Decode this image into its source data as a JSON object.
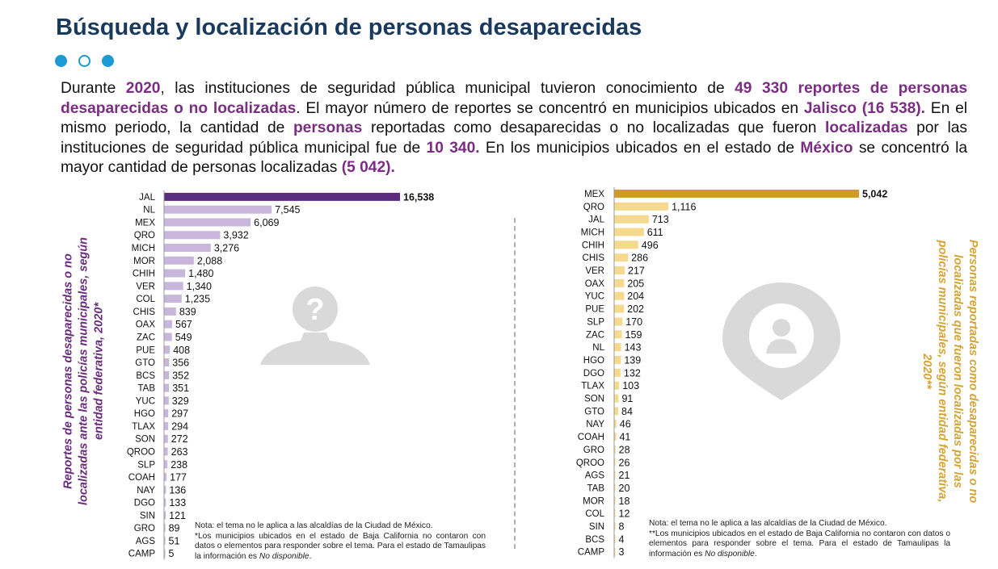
{
  "title": "Búsqueda y localización de personas desaparecidas",
  "intro": [
    {
      "t": "Durante ",
      "hl": false
    },
    {
      "t": "2020",
      "hl": true
    },
    {
      "t": ", las instituciones de seguridad pública municipal tuvieron conocimiento de ",
      "hl": false
    },
    {
      "t": "49 330 reportes de personas desaparecidas o no localizadas",
      "hl": true
    },
    {
      "t": ". El mayor número de reportes se concentró en municipios ubicados en ",
      "hl": false
    },
    {
      "t": "Jalisco (16 538).",
      "hl": true
    },
    {
      "t": " En el mismo periodo, la cantidad de ",
      "hl": false
    },
    {
      "t": "personas",
      "hl": true
    },
    {
      "t": " reportadas como desaparecidas o no localizadas que fueron ",
      "hl": false
    },
    {
      "t": "localizadas",
      "hl": true
    },
    {
      "t": " por las instituciones de seguridad pública municipal fue de ",
      "hl": false
    },
    {
      "t": "10 340.",
      "hl": true
    },
    {
      "t": " En los municipios ubicados en el estado de ",
      "hl": false
    },
    {
      "t": "México",
      "hl": true
    },
    {
      "t": " se concentró la mayor cantidad de personas localizadas ",
      "hl": false
    },
    {
      "t": "(5 042).",
      "hl": true
    }
  ],
  "colors": {
    "title": "#1a3a5c",
    "dots": "#1c9ad6",
    "highlight": "#7a2d82",
    "left_top_bar": "#5c2d7f",
    "left_bars": "#c8b6dc",
    "right_top_bar": "#d09a2a",
    "right_bars": "#f5d98c",
    "left_label": "#6a2c7e",
    "right_label": "#d4a437",
    "silhouette": "#d9d9d9"
  },
  "icons": [
    "person-question-icon",
    "location-pin-person-icon"
  ],
  "chart_data": [
    {
      "type": "bar",
      "orientation": "horizontal",
      "ylabel": "Reportes de personas desaparecidas o no localizadas ante las policías municipales, según entidad federativa, 2020*",
      "categories": [
        "JAL",
        "NL",
        "MEX",
        "QRO",
        "MICH",
        "MOR",
        "CHIH",
        "VER",
        "COL",
        "CHIS",
        "OAX",
        "ZAC",
        "PUE",
        "GTO",
        "BCS",
        "TAB",
        "YUC",
        "HGO",
        "TLAX",
        "SON",
        "QROO",
        "SLP",
        "COAH",
        "NAY",
        "DGO",
        "SIN",
        "GRO",
        "AGS",
        "CAMP"
      ],
      "values": [
        16538,
        7545,
        6069,
        3932,
        3276,
        2088,
        1480,
        1340,
        1235,
        839,
        567,
        549,
        408,
        356,
        352,
        351,
        329,
        297,
        294,
        272,
        263,
        238,
        177,
        136,
        133,
        121,
        89,
        51,
        5
      ],
      "labels": [
        "16,538",
        "7,545",
        "6,069",
        "3,932",
        "3,276",
        "2,088",
        "1,480",
        "1,340",
        "1,235",
        "839",
        "567",
        "549",
        "408",
        "356",
        "352",
        "351",
        "329",
        "297",
        "294",
        "272",
        "263",
        "238",
        "177",
        "136",
        "133",
        "121",
        "89",
        "51",
        "5"
      ],
      "note_lines": [
        "Nota: el tema no le aplica a las alcaldías de la Ciudad de México.",
        "*Los municipios ubicados en el estado de Baja California no contaron con datos o elementos para responder sobre el tema. Para el estado de Tamaulipas la información es "
      ],
      "note_italic": "No disponible",
      "note_end": "."
    },
    {
      "type": "bar",
      "orientation": "horizontal",
      "ylabel": "Personas reportadas como desaparecidas o no localizadas que fueron localizadas por las policías municipales, según entidad federativa, 2020**",
      "categories": [
        "MEX",
        "QRO",
        "JAL",
        "MICH",
        "CHIH",
        "CHIS",
        "VER",
        "OAX",
        "YUC",
        "PUE",
        "SLP",
        "ZAC",
        "NL",
        "HGO",
        "DGO",
        "TLAX",
        "SON",
        "GTO",
        "NAY",
        "COAH",
        "GRO",
        "QROO",
        "AGS",
        "TAB",
        "MOR",
        "COL",
        "SIN",
        "BCS",
        "CAMP"
      ],
      "values": [
        5042,
        1116,
        713,
        611,
        496,
        286,
        217,
        205,
        204,
        202,
        170,
        159,
        143,
        139,
        132,
        103,
        91,
        84,
        46,
        41,
        28,
        26,
        21,
        20,
        18,
        12,
        8,
        4,
        3
      ],
      "labels": [
        "5,042",
        "1,116",
        "713",
        "611",
        "496",
        "286",
        "217",
        "205",
        "204",
        "202",
        "170",
        "159",
        "143",
        "139",
        "132",
        "103",
        "91",
        "84",
        "46",
        "41",
        "28",
        "26",
        "21",
        "20",
        "18",
        "12",
        "8",
        "4",
        "3"
      ],
      "note_lines": [
        "Nota: el tema no le aplica a las alcaldías de la Ciudad de México.",
        "**Los municipios ubicados en el estado de Baja California no contaron con datos o elementos para responder sobre el tema. Para el estado de Tamaulipas la información es "
      ],
      "note_italic": "No disponible",
      "note_end": "."
    }
  ]
}
